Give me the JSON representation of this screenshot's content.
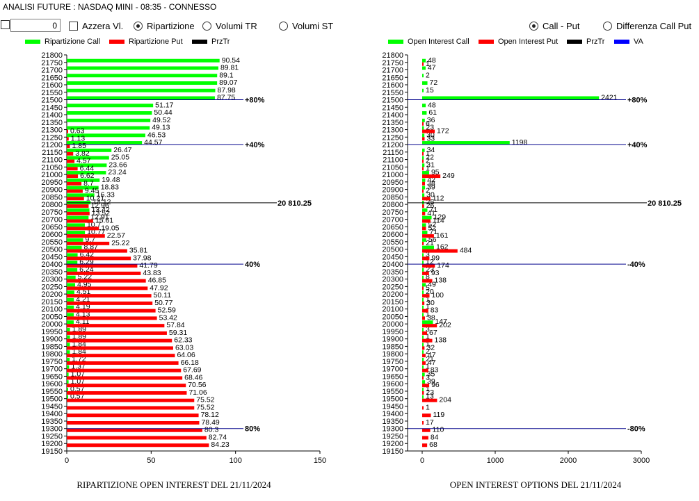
{
  "header": {
    "title": "ANALISI FUTURE : NASDAQ MINI - 08:35 - CONNESSO"
  },
  "controls": {
    "num_value": "0",
    "azzera_label": "Azzera Vl.",
    "radio_ripartizione": "Ripartizione",
    "radio_volumi_tr": "Volumi TR",
    "radio_volumi_st": "Volumi ST",
    "radio_call_put": "Call - Put",
    "radio_diff_call_put": "Differenza Call Put",
    "selected_left": "Ripartizione",
    "selected_right": "Call - Put"
  },
  "colors": {
    "call": "#00ff00",
    "put": "#ff0000",
    "price": "#000000",
    "va": "#0000ff",
    "ref_line": "#00008b"
  },
  "chart_data": [
    {
      "type": "bar",
      "orientation": "horizontal",
      "caption": "RIPARTIZIONE OPEN INTEREST DEL 21/11/2024",
      "legend": [
        "Ripartizione Call",
        "Ripartizione Put",
        "PrzTr"
      ],
      "xlim": [
        0,
        150
      ],
      "xticks": [
        0,
        50,
        100,
        150
      ],
      "ylim": [
        19150,
        21800
      ],
      "yticks": [
        21800,
        21750,
        21700,
        21650,
        21600,
        21550,
        21500,
        21450,
        21400,
        21350,
        21300,
        21250,
        21200,
        21150,
        21100,
        21050,
        21000,
        20950,
        20900,
        20850,
        20800,
        20750,
        20700,
        20650,
        20600,
        20550,
        20500,
        20450,
        20400,
        20350,
        20300,
        20250,
        20200,
        20150,
        20100,
        20050,
        20000,
        19950,
        19900,
        19850,
        19800,
        19750,
        19700,
        19650,
        19600,
        19550,
        19500,
        19450,
        19400,
        19350,
        19300,
        19250,
        19200,
        19150
      ],
      "series": [
        {
          "name": "Ripartizione Call",
          "points": [
            [
              21750,
              90.54
            ],
            [
              21700,
              89.81
            ],
            [
              21650,
              89.1
            ],
            [
              21600,
              89.07
            ],
            [
              21550,
              87.98
            ],
            [
              21500,
              87.75
            ],
            [
              21450,
              51.17
            ],
            [
              21400,
              50.44
            ],
            [
              21350,
              49.52
            ],
            [
              21300,
              49.13
            ],
            [
              21250,
              46.53
            ],
            [
              21200,
              44.57
            ],
            [
              21150,
              26.47
            ],
            [
              21100,
              25.05
            ],
            [
              21050,
              23.66
            ],
            [
              21000,
              23.24
            ],
            [
              20950,
              19.48
            ],
            [
              20900,
              18.83
            ],
            [
              20850,
              16.33
            ],
            [
              20800,
              14.12
            ],
            [
              20750,
              13.42
            ],
            [
              20700,
              12.91
            ],
            [
              20650,
              10.7
            ],
            [
              20600,
              10.77
            ],
            [
              20550,
              9.7
            ],
            [
              20500,
              8.87
            ],
            [
              20450,
              6.42
            ],
            [
              20400,
              6.29
            ],
            [
              20350,
              6.24
            ],
            [
              20300,
              5.22
            ],
            [
              20250,
              4.95
            ],
            [
              20200,
              4.51
            ],
            [
              20150,
              4.21
            ],
            [
              20100,
              4.19
            ],
            [
              20050,
              4.13
            ],
            [
              20000,
              4.11
            ],
            [
              19950,
              1.89
            ],
            [
              19900,
              1.89
            ],
            [
              19850,
              1.84
            ],
            [
              19800,
              1.84
            ],
            [
              19750,
              1.72
            ],
            [
              19700,
              1.37
            ],
            [
              19650,
              1.07
            ],
            [
              19600,
              1.07
            ],
            [
              19550,
              0.57
            ],
            [
              19500,
              0.57
            ]
          ]
        },
        {
          "name": "Ripartizione Put",
          "points": [
            [
              21300,
              0.63
            ],
            [
              21250,
              1.13
            ],
            [
              21200,
              1.85
            ],
            [
              21150,
              3.82
            ],
            [
              21100,
              4.57
            ],
            [
              21050,
              6.44
            ],
            [
              21000,
              6.62
            ],
            [
              20950,
              8.7
            ],
            [
              20900,
              9.45
            ],
            [
              20850,
              10.21
            ],
            [
              20800,
              12.96
            ],
            [
              20750,
              13.52
            ],
            [
              20700,
              15.61
            ],
            [
              20650,
              19.05
            ],
            [
              20600,
              22.57
            ],
            [
              20550,
              25.22
            ],
            [
              20500,
              35.81
            ],
            [
              20450,
              37.98
            ],
            [
              20400,
              41.79
            ],
            [
              20350,
              43.83
            ],
            [
              20300,
              46.85
            ],
            [
              20250,
              47.92
            ],
            [
              20200,
              50.11
            ],
            [
              20150,
              50.77
            ],
            [
              20100,
              52.59
            ],
            [
              20050,
              53.42
            ],
            [
              20000,
              57.84
            ],
            [
              19950,
              59.31
            ],
            [
              19900,
              62.33
            ],
            [
              19850,
              63.03
            ],
            [
              19800,
              64.06
            ],
            [
              19750,
              66.18
            ],
            [
              19700,
              67.69
            ],
            [
              19650,
              68.46
            ],
            [
              19600,
              70.56
            ],
            [
              19550,
              71.06
            ],
            [
              19500,
              75.52
            ],
            [
              19450,
              75.52
            ],
            [
              19400,
              78.12
            ],
            [
              19350,
              78.49
            ],
            [
              19300,
              80.3
            ],
            [
              19250,
              82.74
            ],
            [
              19200,
              84.23
            ]
          ]
        }
      ],
      "price_line": {
        "value": 20810.25,
        "label": "20 810.25"
      },
      "ref_lines": [
        {
          "y": 21500,
          "label": "+80%"
        },
        {
          "y": 21200,
          "label": "+40%"
        },
        {
          "y": 20400,
          "label": "40%"
        },
        {
          "y": 19300,
          "label": "80%"
        }
      ]
    },
    {
      "type": "bar",
      "orientation": "horizontal",
      "caption": "OPEN INTEREST OPTIONS DEL 21/11/2024",
      "legend": [
        "Open Interest Call",
        "Open Interest Put",
        "PrzTr",
        "VA"
      ],
      "xlim": [
        -200,
        3000
      ],
      "xticks": [
        0,
        1000,
        2000,
        3000
      ],
      "ylim": [
        19150,
        21800
      ],
      "yticks": [
        21800,
        21750,
        21700,
        21650,
        21600,
        21550,
        21500,
        21450,
        21400,
        21350,
        21300,
        21250,
        21200,
        21150,
        21100,
        21050,
        21000,
        20950,
        20900,
        20850,
        20800,
        20750,
        20700,
        20650,
        20600,
        20550,
        20500,
        20450,
        20400,
        20350,
        20300,
        20250,
        20200,
        20150,
        20100,
        20050,
        20000,
        19950,
        19900,
        19850,
        19800,
        19750,
        19700,
        19650,
        19600,
        19550,
        19500,
        19450,
        19400,
        19350,
        19300,
        19250,
        19200,
        19150
      ],
      "series": [
        {
          "name": "Open Interest Call",
          "points": [
            [
              21750,
              48
            ],
            [
              21700,
              47
            ],
            [
              21650,
              2
            ],
            [
              21600,
              72
            ],
            [
              21550,
              15
            ],
            [
              21500,
              2421
            ],
            [
              21450,
              48
            ],
            [
              21400,
              61
            ],
            [
              21350,
              36
            ],
            [
              21300,
              23
            ],
            [
              21250,
              30
            ],
            [
              21200,
              1198
            ],
            [
              21150,
              34
            ],
            [
              21100,
              22
            ],
            [
              21050,
              31
            ],
            [
              21000,
              95
            ],
            [
              20950,
              42
            ],
            [
              20900,
              39
            ],
            [
              20850,
              30
            ],
            [
              20800,
              25
            ],
            [
              20750,
              71
            ],
            [
              20700,
              129
            ],
            [
              20650,
              52
            ],
            [
              20600,
              71
            ],
            [
              20550,
              56
            ],
            [
              20500,
              162
            ],
            [
              20450,
              3
            ],
            [
              20400,
              12
            ],
            [
              20350,
              23
            ],
            [
              20300,
              8
            ],
            [
              20250,
              49
            ],
            [
              20200,
              20
            ],
            [
              20150,
              1
            ],
            [
              20100,
              1
            ],
            [
              20050,
              1
            ],
            [
              20000,
              147
            ],
            [
              19950,
              3
            ],
            [
              19900,
              1
            ],
            [
              19850,
              1
            ],
            [
              19800,
              2
            ],
            [
              19750,
              21
            ],
            [
              19700,
              1
            ],
            [
              19650,
              35
            ],
            [
              19600,
              39
            ],
            [
              19550,
              1
            ],
            [
              19500,
              13
            ]
          ]
        },
        {
          "name": "Open Interest Put",
          "points": [
            [
              21750,
              1
            ],
            [
              21350,
              6
            ],
            [
              21300,
              172
            ],
            [
              21250,
              33
            ],
            [
              21150,
              1
            ],
            [
              21100,
              2
            ],
            [
              21050,
              1
            ],
            [
              21000,
              249
            ],
            [
              20950,
              38
            ],
            [
              20900,
              2
            ],
            [
              20850,
              112
            ],
            [
              20800,
              26
            ],
            [
              20750,
              41
            ],
            [
              20700,
              114
            ],
            [
              20650,
              52
            ],
            [
              20600,
              161
            ],
            [
              20550,
              21
            ],
            [
              20500,
              484
            ],
            [
              20450,
              99
            ],
            [
              20400,
              174
            ],
            [
              20350,
              93
            ],
            [
              20300,
              138
            ],
            [
              20250,
              5
            ],
            [
              20200,
              100
            ],
            [
              20150,
              30
            ],
            [
              20100,
              83
            ],
            [
              20050,
              38
            ],
            [
              20000,
              202
            ],
            [
              19950,
              67
            ],
            [
              19900,
              138
            ],
            [
              19850,
              32
            ],
            [
              19800,
              47
            ],
            [
              19750,
              47
            ],
            [
              19700,
              83
            ],
            [
              19650,
              3
            ],
            [
              19600,
              96
            ],
            [
              19550,
              23
            ],
            [
              19500,
              204
            ],
            [
              19450,
              1
            ],
            [
              19400,
              119
            ],
            [
              19350,
              17
            ],
            [
              19300,
              110
            ],
            [
              19250,
              84
            ],
            [
              19200,
              68
            ]
          ]
        }
      ],
      "price_line": {
        "value": 20810.25,
        "label": "20 810.25"
      },
      "ref_lines": [
        {
          "y": 21500,
          "label": "+80%"
        },
        {
          "y": 21200,
          "label": "+40%"
        },
        {
          "y": 20400,
          "label": "-40%"
        },
        {
          "y": 19300,
          "label": "-80%"
        }
      ]
    }
  ]
}
